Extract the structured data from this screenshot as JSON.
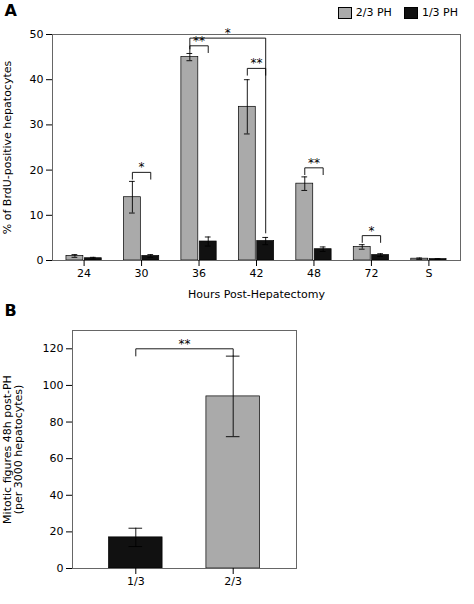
{
  "chart_data": [
    {
      "type": "bar",
      "title": "A",
      "xlabel": "Hours Post-Hepatectomy",
      "ylabel": "% of BrdU-positive hepatocytes",
      "categories": [
        "24",
        "30",
        "36",
        "42",
        "48",
        "72",
        "S"
      ],
      "series": [
        {
          "name": "2/3 PH",
          "color": "#aaaaaa",
          "values": [
            1.0,
            14.0,
            45.0,
            34.0,
            17.0,
            3.0,
            0.4
          ],
          "errors": [
            0.3,
            3.5,
            0.8,
            6.0,
            1.5,
            0.5,
            0.15
          ]
        },
        {
          "name": "1/3 PH",
          "color": "#111111",
          "values": [
            0.5,
            1.0,
            4.2,
            4.3,
            2.5,
            1.2,
            0.3
          ],
          "errors": [
            0.2,
            0.3,
            1.0,
            0.8,
            0.5,
            0.3,
            0.1
          ]
        }
      ],
      "ylim": [
        0,
        50
      ],
      "yticks": [
        0,
        10,
        20,
        30,
        40,
        50
      ],
      "legend": "upper right",
      "annotations": [
        {
          "text": "*",
          "x": [
            "30",
            "30"
          ],
          "series": [
            "2/3 PH",
            "1/3 PH"
          ],
          "y": 19.5
        },
        {
          "text": "**",
          "x": [
            "36",
            "36"
          ],
          "series": [
            "2/3 PH",
            "1/3 PH"
          ],
          "y": 47.5
        },
        {
          "text": "*",
          "x": [
            "36",
            "42"
          ],
          "series": [
            "2/3 PH",
            "1/3 PH"
          ],
          "y": 49.2
        },
        {
          "text": "**",
          "x": [
            "42",
            "42"
          ],
          "series": [
            "2/3 PH",
            "1/3 PH"
          ],
          "y": 42.5
        },
        {
          "text": "**",
          "x": [
            "48",
            "48"
          ],
          "series": [
            "2/3 PH",
            "1/3 PH"
          ],
          "y": 20.5
        },
        {
          "text": "*",
          "x": [
            "72",
            "72"
          ],
          "series": [
            "2/3 PH",
            "1/3 PH"
          ],
          "y": 5.5
        }
      ]
    },
    {
      "type": "bar",
      "title": "B",
      "ylabel": "Mitotic figures 48h post-PH\n(per 3000 hepatocytes)",
      "categories": [
        "1/3",
        "2/3"
      ],
      "values": [
        17.0,
        94.0
      ],
      "errors": [
        5.0,
        22.0
      ],
      "colors": [
        "#111111",
        "#aaaaaa"
      ],
      "ylim": [
        0,
        130
      ],
      "yticks": [
        0,
        20,
        40,
        60,
        80,
        100,
        120
      ],
      "annotations": [
        {
          "text": "**",
          "x": [
            "1/3",
            "2/3"
          ],
          "y": 120
        }
      ]
    }
  ]
}
